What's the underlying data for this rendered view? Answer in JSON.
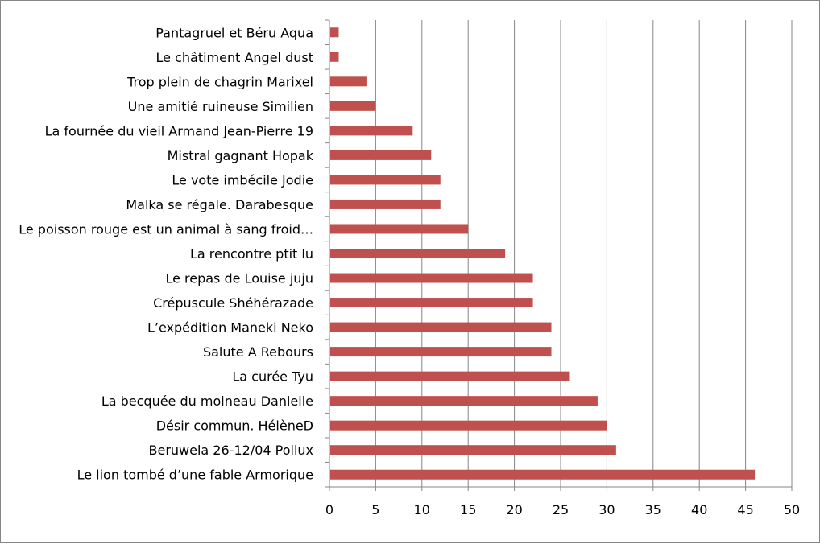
{
  "chart_data": {
    "type": "bar",
    "orientation": "horizontal",
    "categories": [
      "Pantagruel et Béru Aqua",
      "Le châtiment    Angel dust",
      "Trop plein de chagrin Marixel",
      "Une amitié ruineuse  Similien",
      "La fournée du vieil Armand Jean-Pierre 19",
      "Mistral gagnant Hopak",
      "Le vote imbécile    Jodie",
      "Malka se régale. Darabesque",
      "Le poisson rouge est un animal à sang froid…",
      "La rencontre   ptit lu",
      "Le repas de Louise juju",
      "Crépuscule   Shéhérazade",
      "L’expédition  Maneki Neko",
      "Salute A Rebours",
      "La curée Tyu",
      "La becquée du moineau Danielle",
      "Désir commun. HélèneD",
      "Beruwela 26-12/04   Pollux",
      "Le lion tombé d’une fable  Armorique"
    ],
    "values": [
      1,
      1,
      4,
      5,
      9,
      11,
      12,
      12,
      15,
      19,
      22,
      22,
      24,
      24,
      26,
      29,
      30,
      31,
      46
    ],
    "xlim": [
      0,
      50
    ],
    "xticks": [
      "0",
      "5",
      "10",
      "15",
      "20",
      "25",
      "30",
      "35",
      "40",
      "45",
      "50"
    ],
    "grid": "vertical",
    "legend": "none",
    "bar_color": "#C0504D",
    "grid_color": "#868686",
    "title": "",
    "xlabel": "",
    "ylabel": ""
  }
}
